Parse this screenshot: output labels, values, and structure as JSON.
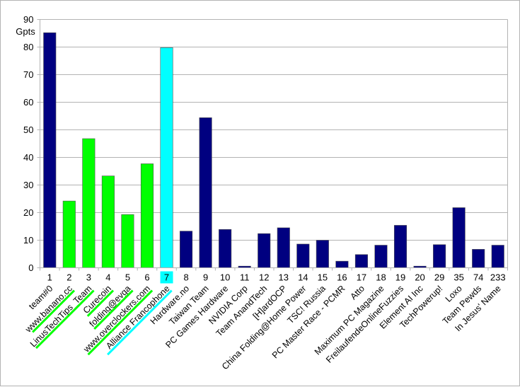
{
  "chart_data": {
    "type": "bar",
    "ylabel": "Gpts",
    "ylim": [
      0,
      90
    ],
    "yticks": [
      0,
      10,
      20,
      30,
      40,
      50,
      60,
      70,
      80,
      90
    ],
    "grid": true,
    "categories": [
      "1",
      "2",
      "3",
      "4",
      "5",
      "6",
      "7",
      "8",
      "9",
      "10",
      "11",
      "12",
      "13",
      "14",
      "15",
      "16",
      "17",
      "18",
      "19",
      "20",
      "29",
      "35",
      "74",
      "233"
    ],
    "team_names": [
      "team#0",
      "www.banano.cc",
      "LinusTechTips_Team",
      "Curecoin",
      "folding@evga",
      "www.overclockers.com",
      "Alliance Francophone",
      "Hardware.no",
      "Taiwan Team",
      "PC Games Hardware",
      "NVIDIA Corp",
      "Team AnandTech",
      "[H]ardOCP",
      "China Folding@Home Power",
      "TSC! Russia",
      "PC Master Race - PCMR",
      "Atto",
      "Maximum PC Magazine",
      "FreilaufendeOnlineFuzzies",
      "Element AI Inc",
      "TechPowerup!",
      "Loxo",
      "Team Pewds",
      "In Jesus' Name"
    ],
    "values": [
      85.2,
      24.2,
      46.8,
      33.3,
      19.3,
      37.7,
      79.8,
      13.3,
      54.4,
      13.9,
      0.6,
      12.4,
      14.5,
      8.6,
      10.0,
      2.4,
      4.8,
      8.2,
      15.4,
      0.6,
      8.4,
      21.8,
      6.7,
      8.2
    ],
    "bar_colors": [
      "#000080",
      "#00ff00",
      "#00ff00",
      "#00ff00",
      "#00ff00",
      "#00ff00",
      "#00ffff",
      "#000080",
      "#000080",
      "#000080",
      "#000080",
      "#000080",
      "#000080",
      "#000080",
      "#000080",
      "#000080",
      "#000080",
      "#000080",
      "#000080",
      "#000080",
      "#000080",
      "#000080",
      "#000080",
      "#000080"
    ],
    "highlight_category_index": 6,
    "highlight_color": "#00ffff",
    "underline_colors": {
      "1": "#00ff00",
      "2": "#00ff00",
      "3": "#00ff00",
      "4": "#00ff00",
      "5": "#00ff00",
      "6": "#00ffff"
    }
  }
}
